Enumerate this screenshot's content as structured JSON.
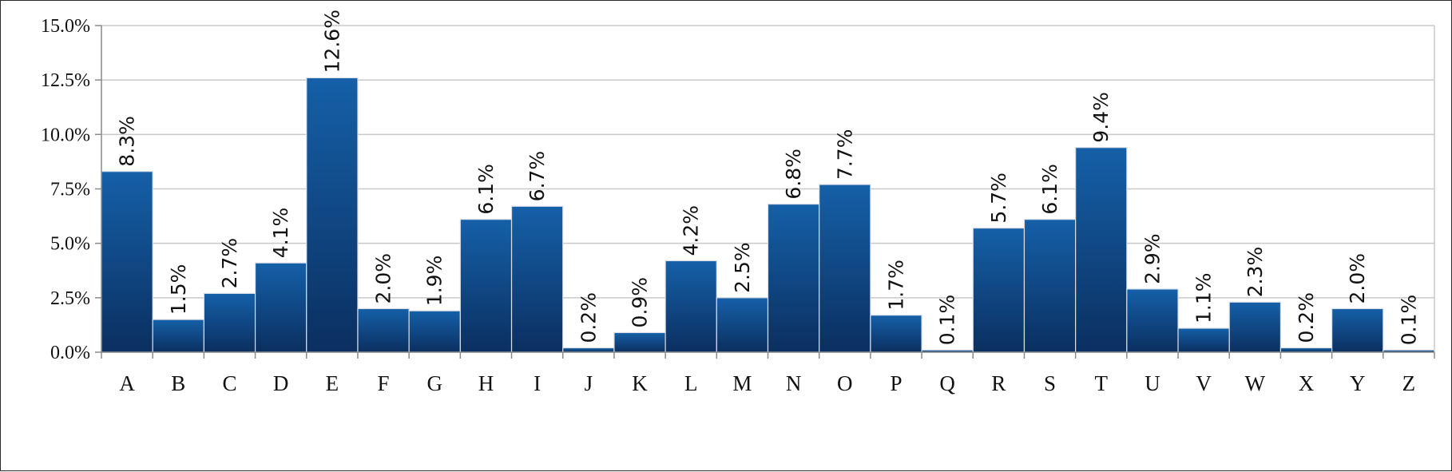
{
  "chart_data": {
    "type": "bar",
    "categories": [
      "A",
      "B",
      "C",
      "D",
      "E",
      "F",
      "G",
      "H",
      "I",
      "J",
      "K",
      "L",
      "M",
      "N",
      "O",
      "P",
      "Q",
      "R",
      "S",
      "T",
      "U",
      "V",
      "W",
      "X",
      "Y",
      "Z"
    ],
    "values": [
      8.3,
      1.5,
      2.7,
      4.1,
      12.6,
      2.0,
      1.9,
      6.1,
      6.7,
      0.2,
      0.9,
      4.2,
      2.5,
      6.8,
      7.7,
      1.7,
      0.1,
      5.7,
      6.1,
      9.4,
      2.9,
      1.1,
      2.3,
      0.2,
      2.0,
      0.1
    ],
    "data_labels": [
      "8.3%",
      "1.5%",
      "2.7%",
      "4.1%",
      "12.6%",
      "2.0%",
      "1.9%",
      "6.1%",
      "6.7%",
      "0.2%",
      "0.9%",
      "4.2%",
      "2.5%",
      "6.8%",
      "7.7%",
      "1.7%",
      "0.1%",
      "5.7%",
      "6.1%",
      "9.4%",
      "2.9%",
      "1.1%",
      "2.3%",
      "0.2%",
      "2.0%",
      "0.1%"
    ],
    "y_ticks": [
      0,
      2.5,
      5,
      7.5,
      10,
      12.5,
      15
    ],
    "y_tick_labels": [
      "0.0%",
      "2.5%",
      "5.0%",
      "7.5%",
      "10.0%",
      "12.5%",
      "15.0%"
    ],
    "ylim": [
      0,
      15
    ],
    "grid": true,
    "legend": "none",
    "colors": {
      "bar_top": "#1560a8",
      "bar_bottom": "#0b2f60",
      "bar_stroke": "#d8dde6",
      "grid": "#c9c9c9",
      "axis": "#8a8a8a"
    }
  }
}
